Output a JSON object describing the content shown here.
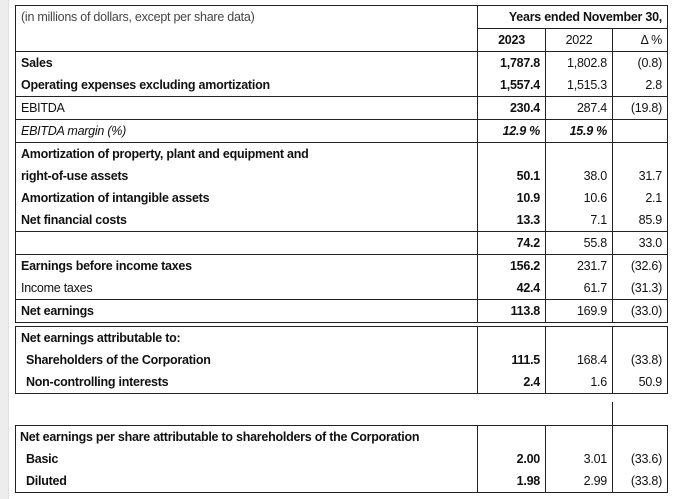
{
  "header": {
    "units_note": "(in millions of dollars, except per share data)",
    "period_label": "Years ended November 30,",
    "columns": [
      "2023",
      "2022",
      "Δ %"
    ]
  },
  "income_statement": [
    {
      "label": "Sales",
      "v2023": "1,787.8",
      "v2022": "1,802.8",
      "delta": "(0.8)"
    },
    {
      "label": "Operating expenses excluding amortization",
      "v2023": "1,557.4",
      "v2022": "1,515.3",
      "delta": "2.8"
    },
    {
      "label": "EBITDA",
      "v2023": "230.4",
      "v2022": "287.4",
      "delta": "(19.8)"
    },
    {
      "label": "EBITDA margin (%)",
      "v2023": "12.9 %",
      "v2022": "15.9 %",
      "delta": ""
    },
    {
      "label": "Amortization of property, plant and equipment and",
      "label2": "right-of-use assets",
      "v2023": "50.1",
      "v2022": "38.0",
      "delta": "31.7"
    },
    {
      "label": "Amortization of intangible assets",
      "v2023": "10.9",
      "v2022": "10.6",
      "delta": "2.1"
    },
    {
      "label": "Net financial costs",
      "v2023": "13.3",
      "v2022": "7.1",
      "delta": "85.9"
    },
    {
      "label": "",
      "v2023": "74.2",
      "v2022": "55.8",
      "delta": "33.0"
    },
    {
      "label": "Earnings before income taxes",
      "v2023": "156.2",
      "v2022": "231.7",
      "delta": "(32.6)"
    },
    {
      "label": "Income taxes",
      "v2023": "42.4",
      "v2022": "61.7",
      "delta": "(31.3)"
    },
    {
      "label": "Net earnings",
      "v2023": "113.8",
      "v2022": "169.9",
      "delta": "(33.0)"
    }
  ],
  "attributable": {
    "title": "Net earnings attributable to:",
    "rows": [
      {
        "label": "Shareholders of the Corporation",
        "v2023": "111.5",
        "v2022": "168.4",
        "delta": "(33.8)"
      },
      {
        "label": "Non-controlling interests",
        "v2023": "2.4",
        "v2022": "1.6",
        "delta": "50.9"
      }
    ]
  },
  "per_share": {
    "title": "Net earnings per share attributable to shareholders of the Corporation",
    "rows": [
      {
        "label": "Basic",
        "v2023": "2.00",
        "v2022": "3.01",
        "delta": "(33.6)"
      },
      {
        "label": "Diluted",
        "v2023": "1.98",
        "v2022": "2.99",
        "delta": "(33.8)"
      }
    ]
  }
}
